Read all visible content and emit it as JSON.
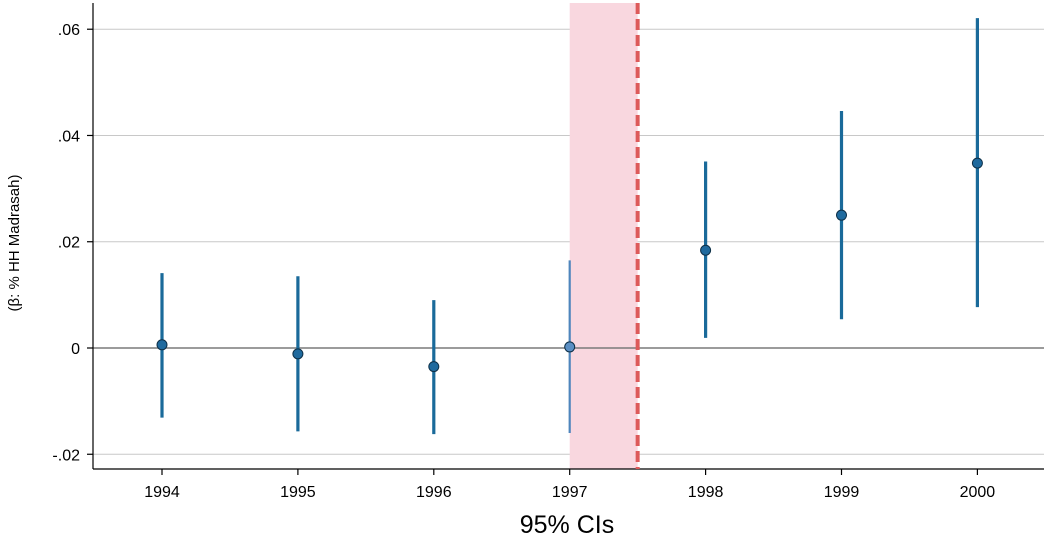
{
  "chart_data": {
    "type": "scatter",
    "subtype": "coefficient-plot-with-confidence-intervals",
    "title": "",
    "xlabel": "95% CIs",
    "ylabel": "(β: % HH Madrasah)",
    "x": [
      1994,
      1995,
      1996,
      1997,
      1998,
      1999,
      2000
    ],
    "x_tick_labels": [
      "1994",
      "1995",
      "1996",
      "1997",
      "1998",
      "1999",
      "2000"
    ],
    "y_ticks": [
      -0.02,
      0,
      0.02,
      0.04,
      0.06
    ],
    "y_tick_labels": [
      "-.02",
      "0",
      ".02",
      ".04",
      ".06"
    ],
    "xlim": [
      1993.5,
      2000.5
    ],
    "ylim": [
      -0.0235,
      0.065
    ],
    "grid": "horizontal",
    "series": [
      {
        "estimates": [
          0.0006,
          -0.0011,
          -0.0035,
          0.0002,
          0.0184,
          0.025,
          0.0348
        ],
        "ci_low": [
          -0.0131,
          -0.0157,
          -0.0162,
          -0.016,
          0.0019,
          0.0054,
          0.0077
        ],
        "ci_high": [
          0.0141,
          0.0135,
          0.009,
          0.0165,
          0.0351,
          0.0446,
          0.0621
        ],
        "highlighted_index": 3
      }
    ],
    "reference_line_y": 0,
    "shaded_region_x": [
      1997,
      1997.5
    ],
    "vertical_dashed_line_x": 1997.5,
    "colors": {
      "point": "#1f6a9e",
      "point_highlight": "#5b8fc4",
      "ci": "#1a6a9a",
      "ci_highlight": "#4f86bd",
      "shade": "#f9d7df",
      "dashed_line": "#dd5a5a",
      "grid": "#c8c8c8",
      "zero_line": "#7a7a7a",
      "axis": "#000000"
    }
  }
}
